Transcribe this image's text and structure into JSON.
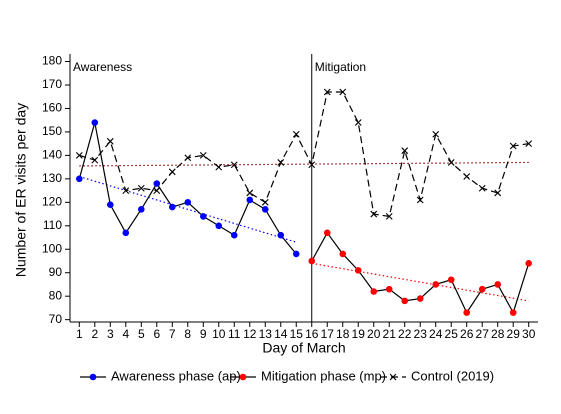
{
  "chart_data": {
    "type": "line",
    "y_label": "Number of ER visits per day",
    "x_label": "Day of March",
    "xlim": [
      0.4,
      30.6
    ],
    "xticks": [
      1,
      2,
      3,
      4,
      5,
      6,
      7,
      8,
      9,
      10,
      11,
      12,
      13,
      14,
      15,
      16,
      17,
      18,
      19,
      20,
      21,
      22,
      23,
      24,
      25,
      26,
      27,
      28,
      29,
      30
    ],
    "ylim": [
      69,
      181.5
    ],
    "yticks": [
      70,
      80,
      90,
      100,
      110,
      120,
      130,
      140,
      150,
      160,
      170,
      180
    ],
    "divider": 16,
    "annotations": [
      {
        "text": "Awareness",
        "x": 1
      },
      {
        "text": "Mitigation",
        "x": 16
      }
    ],
    "series": [
      {
        "name": "Awareness phase (ap)",
        "color": "#0000ff",
        "marker": "circle",
        "dash": "solid",
        "x": [
          1,
          2,
          3,
          4,
          5,
          6,
          7,
          8,
          9,
          10,
          11,
          12,
          13,
          14,
          15
        ],
        "values": [
          130,
          154,
          119,
          107,
          117,
          128,
          118,
          120,
          114,
          110,
          106,
          121,
          117,
          106,
          98
        ]
      },
      {
        "name": "Mitigation phase (mp)",
        "color": "#ff0000",
        "marker": "circle",
        "dash": "solid",
        "x": [
          16,
          17,
          18,
          19,
          20,
          21,
          22,
          23,
          24,
          25,
          26,
          27,
          28,
          29,
          30
        ],
        "values": [
          95,
          107,
          98,
          91,
          82,
          83,
          78,
          79,
          85,
          87,
          73,
          83,
          85,
          73,
          94
        ]
      },
      {
        "name": "Control (2019)",
        "color": "#000000",
        "marker": "x",
        "dash": "dashed",
        "x": [
          1,
          2,
          3,
          4,
          5,
          6,
          7,
          8,
          9,
          10,
          11,
          12,
          13,
          14,
          15,
          16,
          17,
          18,
          19,
          20,
          21,
          22,
          23,
          24,
          25,
          26,
          27,
          28,
          29,
          30
        ],
        "values": [
          140,
          138,
          146,
          125,
          126,
          125,
          133,
          139,
          140,
          135,
          136,
          124,
          120,
          137,
          149,
          136,
          167,
          167,
          154,
          115,
          114,
          142,
          121,
          149,
          137,
          131,
          126,
          124,
          144,
          145
        ]
      }
    ],
    "trends": [
      {
        "color": "#0000ff",
        "x": [
          1,
          15
        ],
        "values": [
          131,
          103
        ]
      },
      {
        "color": "#ff0000",
        "x": [
          16,
          30
        ],
        "values": [
          94,
          78
        ]
      },
      {
        "color": "#8b0000",
        "x": [
          1,
          30
        ],
        "values": [
          135.5,
          137
        ]
      }
    ]
  }
}
